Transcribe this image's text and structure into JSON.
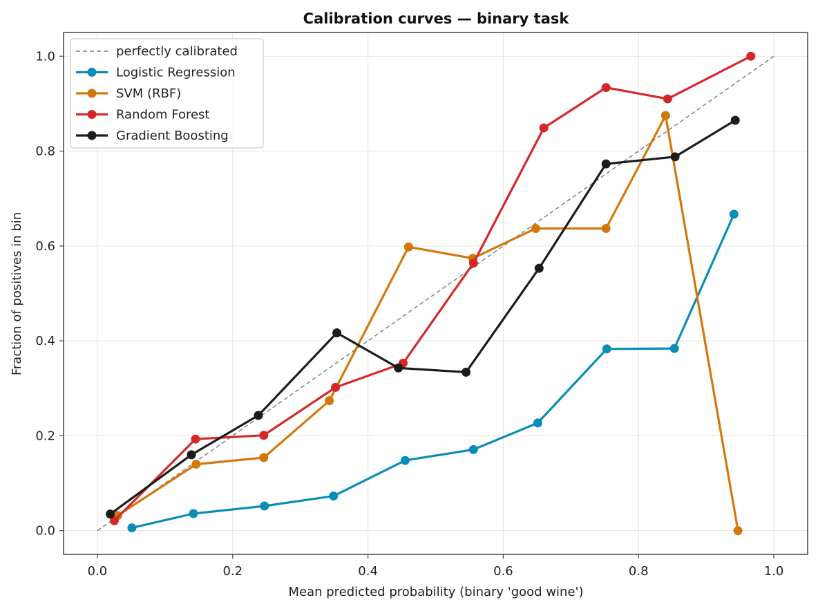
{
  "chart_data": {
    "type": "line",
    "title": "Calibration curves — binary task",
    "xlabel": "Mean predicted probability (binary 'good wine')",
    "ylabel": "Fraction of positives in bin",
    "xlim": [
      -0.05,
      1.05
    ],
    "ylim": [
      -0.05,
      1.05
    ],
    "xticks": [
      "0.0",
      "0.2",
      "0.4",
      "0.6",
      "0.8",
      "1.0"
    ],
    "yticks": [
      "0.0",
      "0.2",
      "0.4",
      "0.6",
      "0.8",
      "1.0"
    ],
    "grid": true,
    "legend_position": "top-left",
    "reference": {
      "name": "perfectly calibrated",
      "x": [
        0,
        1
      ],
      "y": [
        0,
        1
      ],
      "color": "#808080",
      "style": "dashed"
    },
    "series": [
      {
        "name": "Logistic Regression",
        "color": "#0a8db5",
        "x": [
          0.051,
          0.142,
          0.247,
          0.349,
          0.455,
          0.556,
          0.651,
          0.753,
          0.853,
          0.941
        ],
        "y": [
          0.006,
          0.036,
          0.052,
          0.073,
          0.148,
          0.171,
          0.227,
          0.383,
          0.384,
          0.667
        ]
      },
      {
        "name": "SVM (RBF)",
        "color": "#d4770b",
        "x": [
          0.03,
          0.146,
          0.246,
          0.343,
          0.46,
          0.555,
          0.648,
          0.752,
          0.84,
          0.947
        ],
        "y": [
          0.032,
          0.14,
          0.154,
          0.274,
          0.598,
          0.574,
          0.637,
          0.637,
          0.875,
          0.0
        ]
      },
      {
        "name": "Random Forest",
        "color": "#d62728",
        "x": [
          0.025,
          0.145,
          0.246,
          0.352,
          0.452,
          0.556,
          0.66,
          0.752,
          0.843,
          0.966
        ],
        "y": [
          0.021,
          0.193,
          0.201,
          0.302,
          0.353,
          0.564,
          0.849,
          0.934,
          0.91,
          1.0
        ]
      },
      {
        "name": "Gradient Boosting",
        "color": "#1c1c1c",
        "x": [
          0.019,
          0.139,
          0.238,
          0.354,
          0.445,
          0.545,
          0.653,
          0.752,
          0.854,
          0.943
        ],
        "y": [
          0.035,
          0.16,
          0.243,
          0.417,
          0.343,
          0.334,
          0.553,
          0.773,
          0.788,
          0.865
        ]
      }
    ]
  }
}
